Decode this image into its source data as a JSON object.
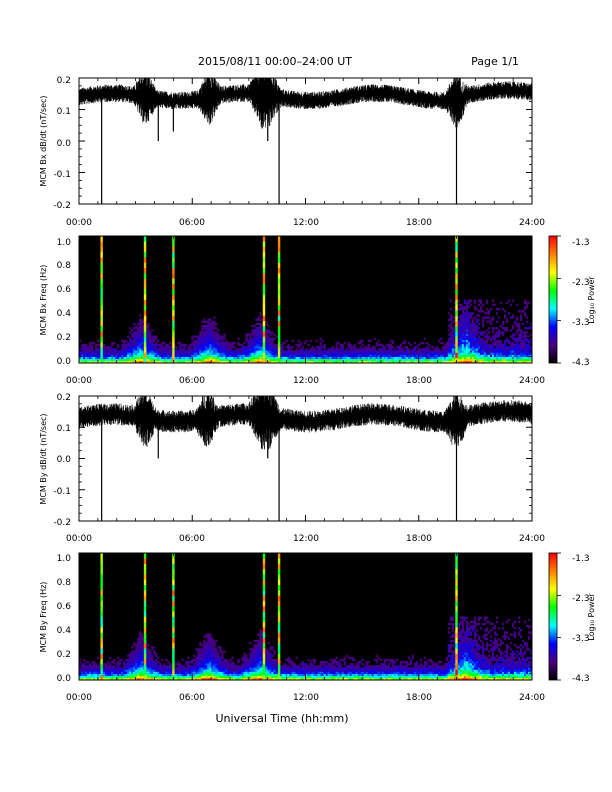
{
  "header": {
    "title": "2015/08/11  00:00–24:00 UT",
    "page": "Page 1/1"
  },
  "footer": {
    "xlabel": "Universal Time (hh:mm)"
  },
  "colorbar": {
    "label": "Log₁₀ Power",
    "ticks": [
      "-1.3",
      "-2.3",
      "-3.3",
      "-4.3"
    ],
    "colors": [
      "#000000",
      "#4b0082",
      "#0000ff",
      "#00ffff",
      "#00ff00",
      "#ffff00",
      "#ff7f00",
      "#ff0000"
    ]
  },
  "chart_data": [
    {
      "type": "line",
      "title": "",
      "ylabel": "MCM Bx dB/dt (nT/sec)",
      "xlabel": "",
      "x_ticks": [
        "00:00",
        "06:00",
        "12:00",
        "18:00",
        "24:00"
      ],
      "y_ticks": [
        "0.2",
        "0.1",
        "0.0",
        "-0.1",
        "-0.2"
      ],
      "xlim_hours": [
        0,
        24
      ],
      "ylim": [
        -0.2,
        0.2
      ],
      "baseline": 0.14,
      "noise_amplitude": 0.02,
      "bursts_hours": [
        3.5,
        6.9,
        9.6,
        10.1,
        20.0
      ],
      "spikes": [
        {
          "t_hours": 1.2,
          "min": -0.2
        },
        {
          "t_hours": 3.3,
          "min": 0.08
        },
        {
          "t_hours": 4.2,
          "min": 0.0
        },
        {
          "t_hours": 5.0,
          "min": 0.03
        },
        {
          "t_hours": 9.7,
          "min": 0.04
        },
        {
          "t_hours": 10.0,
          "min": 0.0
        },
        {
          "t_hours": 10.6,
          "min": -0.2
        },
        {
          "t_hours": 20.0,
          "min": -0.2
        }
      ]
    },
    {
      "type": "heatmap",
      "title": "",
      "ylabel": "MCM Bx Freq (Hz)",
      "xlabel": "",
      "x_ticks": [
        "00:00",
        "06:00",
        "12:00",
        "18:00",
        "24:00"
      ],
      "y_ticks": [
        "1.0",
        "0.8",
        "0.6",
        "0.4",
        "0.2",
        "0.0"
      ],
      "xlim_hours": [
        0,
        24
      ],
      "ylim": [
        0,
        1.0
      ],
      "zlim": [
        -4.3,
        -1.3
      ],
      "stripes_hours": [
        1.2,
        3.5,
        5.0,
        9.8,
        10.6,
        20.0
      ],
      "activity_hours": [
        3.3,
        6.9,
        9.6,
        20.5
      ]
    },
    {
      "type": "line",
      "title": "",
      "ylabel": "MCM By dB/dt (nT/sec)",
      "xlabel": "",
      "x_ticks": [
        "00:00",
        "06:00",
        "12:00",
        "18:00",
        "24:00"
      ],
      "y_ticks": [
        "0.2",
        "0.1",
        "0.0",
        "-0.1",
        "-0.2"
      ],
      "xlim_hours": [
        0,
        24
      ],
      "ylim": [
        -0.2,
        0.2
      ],
      "baseline": 0.13,
      "noise_amplitude": 0.025,
      "bursts_hours": [
        3.5,
        6.8,
        9.6,
        10.1,
        20.0
      ],
      "spikes": [
        {
          "t_hours": 1.2,
          "min": -0.2
        },
        {
          "t_hours": 3.4,
          "min": 0.06
        },
        {
          "t_hours": 4.2,
          "min": 0.0
        },
        {
          "t_hours": 9.7,
          "min": 0.03
        },
        {
          "t_hours": 10.0,
          "min": 0.0
        },
        {
          "t_hours": 10.6,
          "min": -0.2
        },
        {
          "t_hours": 20.0,
          "min": -0.2
        }
      ]
    },
    {
      "type": "heatmap",
      "title": "",
      "ylabel": "MCM By Freq (Hz)",
      "xlabel": "",
      "x_ticks": [
        "00:00",
        "06:00",
        "12:00",
        "18:00",
        "24:00"
      ],
      "y_ticks": [
        "1.0",
        "0.8",
        "0.6",
        "0.4",
        "0.2",
        "0.0"
      ],
      "xlim_hours": [
        0,
        24
      ],
      "ylim": [
        0,
        1.0
      ],
      "zlim": [
        -4.3,
        -1.3
      ],
      "stripes_hours": [
        1.2,
        3.5,
        5.0,
        9.8,
        10.6,
        20.0
      ],
      "activity_hours": [
        3.3,
        6.9,
        9.6,
        20.5
      ]
    }
  ]
}
